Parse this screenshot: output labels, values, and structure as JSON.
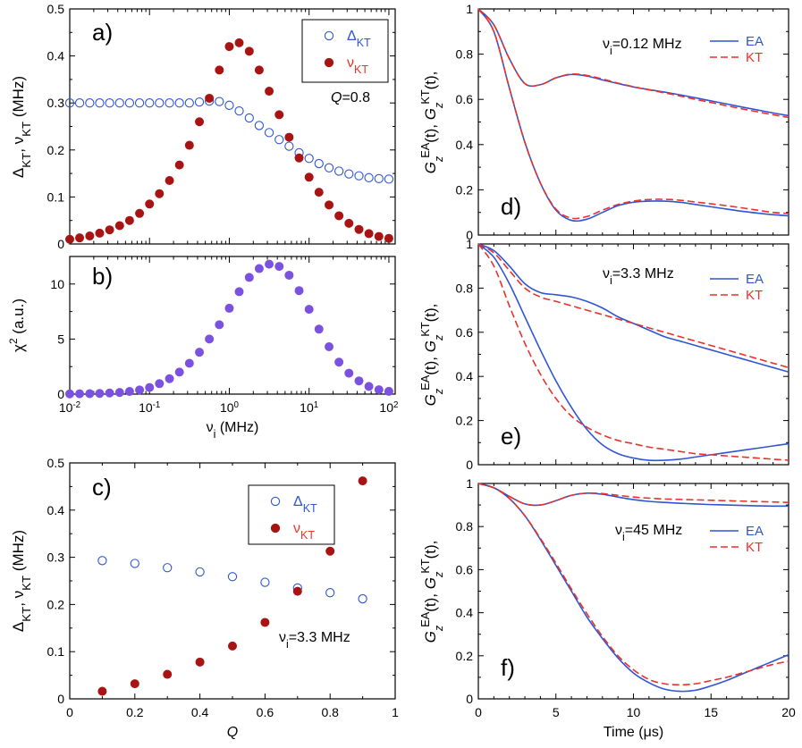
{
  "colors": {
    "blue": "#2f55d4",
    "red": "#e8322a",
    "maroon": "#a81414",
    "purple": "#7b52e0",
    "axis": "#000000"
  },
  "chart_data": [
    {
      "id": "a",
      "type": "scatter",
      "panel_label": "a)",
      "annotation": "Q=0.8",
      "xscale": "log",
      "xlim": [
        0.01,
        120
      ],
      "ylim": [
        0,
        0.5
      ],
      "xticks": [],
      "yticks": [
        "0",
        "0.1",
        "0.2",
        "0.3",
        "0.4",
        "0.5"
      ],
      "ylabel": "ΔKT, νKT (MHz)",
      "xlabel": "",
      "legend": {
        "position": "top-right",
        "entries": [
          {
            "label": "ΔKT",
            "marker": "open-circle"
          },
          {
            "label": "νKT",
            "marker": "filled-circle"
          }
        ]
      },
      "series": [
        {
          "name": "ΔKT",
          "marker": "open-circle",
          "color": "#2f55d4",
          "x": [
            0.01,
            0.0133,
            0.0178,
            0.0237,
            0.0316,
            0.0422,
            0.0562,
            0.075,
            0.1,
            0.133,
            0.178,
            0.237,
            0.316,
            0.422,
            0.562,
            0.75,
            1.0,
            1.33,
            1.78,
            2.37,
            3.16,
            4.22,
            5.62,
            7.5,
            10,
            13.3,
            17.8,
            23.7,
            31.6,
            42.2,
            56.2,
            75,
            100
          ],
          "y": [
            0.3,
            0.3,
            0.3,
            0.3,
            0.3,
            0.3,
            0.3,
            0.3,
            0.3,
            0.3,
            0.3,
            0.3,
            0.3,
            0.302,
            0.304,
            0.303,
            0.295,
            0.283,
            0.268,
            0.252,
            0.237,
            0.222,
            0.208,
            0.194,
            0.182,
            0.171,
            0.162,
            0.155,
            0.149,
            0.145,
            0.141,
            0.139,
            0.138
          ]
        },
        {
          "name": "νKT",
          "marker": "filled-circle",
          "color": "#a81414",
          "x": [
            0.01,
            0.0133,
            0.0178,
            0.0237,
            0.0316,
            0.0422,
            0.0562,
            0.075,
            0.1,
            0.133,
            0.178,
            0.237,
            0.316,
            0.422,
            0.562,
            0.75,
            1.0,
            1.33,
            1.78,
            2.37,
            3.16,
            4.22,
            5.62,
            7.5,
            10,
            13.3,
            17.8,
            23.7,
            31.6,
            42.2,
            56.2,
            75,
            100
          ],
          "y": [
            0.01,
            0.013,
            0.017,
            0.023,
            0.03,
            0.039,
            0.05,
            0.065,
            0.085,
            0.107,
            0.135,
            0.168,
            0.21,
            0.26,
            0.31,
            0.37,
            0.42,
            0.428,
            0.41,
            0.37,
            0.325,
            0.275,
            0.227,
            0.183,
            0.142,
            0.11,
            0.083,
            0.06,
            0.044,
            0.031,
            0.022,
            0.016,
            0.012
          ]
        }
      ]
    },
    {
      "id": "b",
      "type": "scatter",
      "panel_label": "b)",
      "xscale": "log",
      "xlim": [
        0.01,
        120
      ],
      "ylim": [
        0,
        12.5
      ],
      "xticks": [
        "10-2",
        "10-1",
        "100",
        "101",
        "102"
      ],
      "yticks": [
        "0",
        "5",
        "10"
      ],
      "ylabel": "χ2 (a.u.)",
      "xlabel": "νi (MHz)",
      "series": [
        {
          "name": "χ2",
          "marker": "filled-circle",
          "color": "#7b52e0",
          "x": [
            0.01,
            0.0133,
            0.0178,
            0.0237,
            0.0316,
            0.0422,
            0.0562,
            0.075,
            0.1,
            0.133,
            0.178,
            0.237,
            0.316,
            0.422,
            0.562,
            0.75,
            1.0,
            1.33,
            1.78,
            2.37,
            3.16,
            4.22,
            5.62,
            7.5,
            10,
            13.3,
            17.8,
            23.7,
            31.6,
            42.2,
            56.2,
            75,
            100
          ],
          "y": [
            0.02,
            0.03,
            0.04,
            0.06,
            0.1,
            0.15,
            0.24,
            0.38,
            0.6,
            0.95,
            1.4,
            2.0,
            2.8,
            3.8,
            5.0,
            6.3,
            7.8,
            9.3,
            10.6,
            11.4,
            11.8,
            11.6,
            10.8,
            9.4,
            7.7,
            5.9,
            4.3,
            2.9,
            1.9,
            1.2,
            0.7,
            0.4,
            0.25
          ]
        }
      ]
    },
    {
      "id": "c",
      "type": "scatter",
      "panel_label": "c)",
      "annotation": "νi=3.3 MHz",
      "xscale": "linear",
      "xlim": [
        0,
        1
      ],
      "ylim": [
        0,
        0.5
      ],
      "xticks": [
        "0",
        "0.2",
        "0.4",
        "0.6",
        "0.8",
        "1"
      ],
      "yticks": [
        "0",
        "0.1",
        "0.2",
        "0.3",
        "0.4",
        "0.5"
      ],
      "ylabel": "ΔKT, νKT (MHz)",
      "xlabel": "Q",
      "legend": {
        "position": "top-center",
        "entries": [
          {
            "label": "ΔKT",
            "marker": "open-circle"
          },
          {
            "label": "νKT",
            "marker": "filled-circle"
          }
        ]
      },
      "series": [
        {
          "name": "ΔKT",
          "marker": "open-circle",
          "color": "#2f55d4",
          "x": [
            0.1,
            0.2,
            0.3,
            0.4,
            0.5,
            0.6,
            0.7,
            0.8,
            0.9
          ],
          "y": [
            0.293,
            0.287,
            0.278,
            0.269,
            0.259,
            0.247,
            0.235,
            0.225,
            0.212
          ]
        },
        {
          "name": "νKT",
          "marker": "filled-circle",
          "color": "#a81414",
          "x": [
            0.1,
            0.2,
            0.3,
            0.4,
            0.5,
            0.6,
            0.7,
            0.8,
            0.9
          ],
          "y": [
            0.016,
            0.032,
            0.052,
            0.078,
            0.112,
            0.162,
            0.228,
            0.313,
            0.462
          ]
        }
      ]
    },
    {
      "id": "d",
      "type": "line",
      "panel_label": "d)",
      "annotation": "νi=0.12 MHz",
      "xlim": [
        0,
        20
      ],
      "ylim": [
        0,
        1
      ],
      "xticks": [],
      "yticks": [
        "0",
        "0.2",
        "0.4",
        "0.6",
        "0.8",
        "1"
      ],
      "ylabel": "GzEA(t), GzKT(t),",
      "xlabel": "",
      "legend": {
        "position": "top-right",
        "entries": [
          {
            "label": "EA",
            "style": "solid"
          },
          {
            "label": "KT",
            "style": "dashed"
          }
        ]
      },
      "x": [
        0,
        1,
        2,
        3,
        4,
        5,
        6,
        7,
        8,
        9,
        10,
        11,
        12,
        13,
        14,
        15,
        16,
        17,
        18,
        19,
        20
      ],
      "series": [
        {
          "name": "EA",
          "style": "solid",
          "color": "#2f55d4",
          "y": [
            1.0,
            0.93,
            0.78,
            0.67,
            0.665,
            0.695,
            0.71,
            0.703,
            0.686,
            0.67,
            0.655,
            0.643,
            0.632,
            0.62,
            0.607,
            0.593,
            0.58,
            0.566,
            0.553,
            0.54,
            0.528
          ]
        },
        {
          "name": "KT",
          "style": "dashed",
          "color": "#e8322a",
          "y": [
            1.0,
            0.93,
            0.78,
            0.67,
            0.665,
            0.695,
            0.712,
            0.706,
            0.69,
            0.672,
            0.656,
            0.642,
            0.629,
            0.615,
            0.6,
            0.586,
            0.572,
            0.558,
            0.545,
            0.532,
            0.52
          ]
        },
        {
          "name": "EA",
          "style": "solid",
          "color": "#2f55d4",
          "y": [
            1.0,
            0.9,
            0.65,
            0.41,
            0.23,
            0.11,
            0.065,
            0.07,
            0.1,
            0.13,
            0.145,
            0.15,
            0.15,
            0.145,
            0.135,
            0.125,
            0.115,
            0.105,
            0.097,
            0.09,
            0.085
          ]
        },
        {
          "name": "KT",
          "style": "dashed",
          "color": "#e8322a",
          "y": [
            1.0,
            0.9,
            0.65,
            0.41,
            0.23,
            0.115,
            0.075,
            0.082,
            0.11,
            0.135,
            0.15,
            0.157,
            0.158,
            0.154,
            0.146,
            0.138,
            0.13,
            0.12,
            0.11,
            0.1,
            0.095
          ]
        }
      ]
    },
    {
      "id": "e",
      "type": "line",
      "panel_label": "e)",
      "annotation": "νi=3.3 MHz",
      "xlim": [
        0,
        20
      ],
      "ylim": [
        0,
        1
      ],
      "xticks": [],
      "yticks": [
        "0",
        "0.2",
        "0.4",
        "0.6",
        "0.8",
        "1"
      ],
      "ylabel": "GzEA(t), GzKT(t),",
      "xlabel": "",
      "legend": {
        "position": "top-right",
        "entries": [
          {
            "label": "EA",
            "style": "solid"
          },
          {
            "label": "KT",
            "style": "dashed"
          }
        ]
      },
      "x": [
        0,
        1,
        2,
        3,
        4,
        5,
        6,
        7,
        8,
        9,
        10,
        11,
        12,
        13,
        14,
        15,
        16,
        17,
        18,
        19,
        20
      ],
      "series": [
        {
          "name": "EA",
          "style": "solid",
          "color": "#2f55d4",
          "y": [
            1.0,
            0.97,
            0.9,
            0.82,
            0.78,
            0.77,
            0.76,
            0.74,
            0.71,
            0.67,
            0.64,
            0.61,
            0.58,
            0.56,
            0.54,
            0.52,
            0.5,
            0.48,
            0.46,
            0.44,
            0.42
          ]
        },
        {
          "name": "KT",
          "style": "dashed",
          "color": "#e8322a",
          "y": [
            1.0,
            0.96,
            0.88,
            0.8,
            0.76,
            0.74,
            0.72,
            0.7,
            0.68,
            0.66,
            0.64,
            0.62,
            0.6,
            0.58,
            0.56,
            0.54,
            0.52,
            0.5,
            0.48,
            0.46,
            0.44
          ]
        },
        {
          "name": "EA",
          "style": "solid",
          "color": "#2f55d4",
          "y": [
            1.0,
            0.94,
            0.82,
            0.67,
            0.52,
            0.38,
            0.26,
            0.16,
            0.09,
            0.05,
            0.03,
            0.02,
            0.02,
            0.025,
            0.035,
            0.045,
            0.055,
            0.065,
            0.075,
            0.085,
            0.095
          ]
        },
        {
          "name": "KT",
          "style": "dashed",
          "color": "#e8322a",
          "y": [
            1.0,
            0.9,
            0.72,
            0.55,
            0.41,
            0.3,
            0.22,
            0.17,
            0.135,
            0.11,
            0.095,
            0.08,
            0.07,
            0.06,
            0.05,
            0.045,
            0.04,
            0.035,
            0.03,
            0.025,
            0.02
          ]
        }
      ]
    },
    {
      "id": "f",
      "type": "line",
      "panel_label": "f)",
      "annotation": "νi=45 MHz",
      "xlim": [
        0,
        20
      ],
      "ylim": [
        0,
        1
      ],
      "xticks": [
        "0",
        "5",
        "10",
        "15",
        "20"
      ],
      "yticks": [
        "0",
        "0.2",
        "0.4",
        "0.6",
        "0.8",
        "1"
      ],
      "ylabel": "GzEA(t), GzKT(t),",
      "xlabel": "Time (μs)",
      "legend": {
        "position": "middle-right",
        "entries": [
          {
            "label": "EA",
            "style": "solid"
          },
          {
            "label": "KT",
            "style": "dashed"
          }
        ]
      },
      "x": [
        0,
        1,
        2,
        3,
        4,
        5,
        6,
        7,
        8,
        9,
        10,
        11,
        12,
        13,
        14,
        15,
        16,
        17,
        18,
        19,
        20
      ],
      "series": [
        {
          "name": "EA",
          "style": "solid",
          "color": "#2f55d4",
          "y": [
            1.0,
            0.98,
            0.94,
            0.905,
            0.9,
            0.92,
            0.945,
            0.955,
            0.95,
            0.937,
            0.925,
            0.917,
            0.912,
            0.908,
            0.905,
            0.902,
            0.9,
            0.898,
            0.896,
            0.895,
            0.895
          ]
        },
        {
          "name": "KT",
          "style": "dashed",
          "color": "#e8322a",
          "y": [
            1.0,
            0.98,
            0.94,
            0.905,
            0.9,
            0.92,
            0.945,
            0.955,
            0.953,
            0.945,
            0.937,
            0.932,
            0.928,
            0.926,
            0.924,
            0.922,
            0.92,
            0.918,
            0.916,
            0.914,
            0.912
          ]
        },
        {
          "name": "EA",
          "style": "solid",
          "color": "#2f55d4",
          "y": [
            1.0,
            0.98,
            0.93,
            0.85,
            0.74,
            0.62,
            0.5,
            0.38,
            0.28,
            0.19,
            0.12,
            0.075,
            0.045,
            0.035,
            0.04,
            0.06,
            0.085,
            0.115,
            0.145,
            0.175,
            0.205
          ]
        },
        {
          "name": "KT",
          "style": "dashed",
          "color": "#e8322a",
          "y": [
            1.0,
            0.98,
            0.93,
            0.85,
            0.745,
            0.63,
            0.51,
            0.395,
            0.29,
            0.2,
            0.135,
            0.09,
            0.07,
            0.065,
            0.07,
            0.085,
            0.1,
            0.12,
            0.14,
            0.16,
            0.175
          ]
        }
      ]
    }
  ]
}
